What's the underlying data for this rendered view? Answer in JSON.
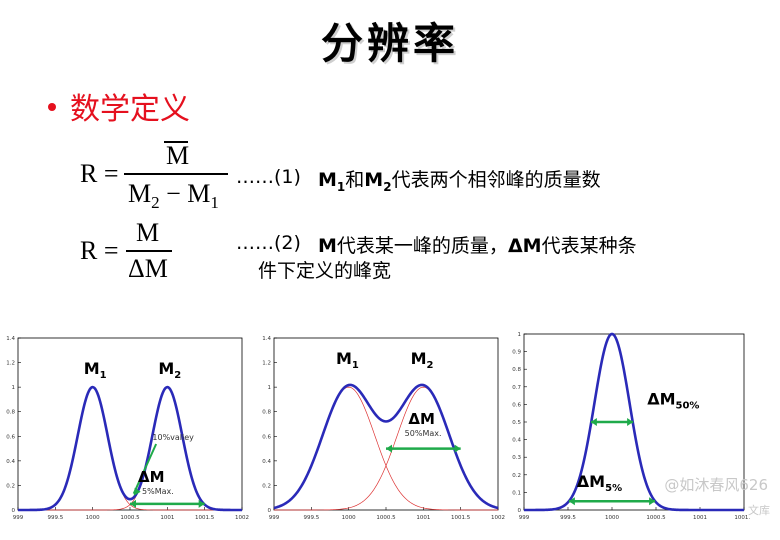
{
  "title": "分辨率",
  "bullet": "数学定义",
  "formula1": {
    "lhs": "R =",
    "numerator": "M",
    "den_a": "M",
    "den_a_sub": "2",
    "den_op": "−",
    "den_b": "M",
    "den_b_sub": "1",
    "ref": "……(1)",
    "desc_m1": "M",
    "desc_m1_sub": "1",
    "desc_and": "和",
    "desc_m2": "M",
    "desc_m2_sub": "2",
    "desc_rest": "代表两个相邻峰的质量数"
  },
  "formula2": {
    "lhs": "R =",
    "numerator": "M",
    "denominator": "ΔM",
    "ref": "……(2)",
    "desc_m": "M",
    "desc_a": "代表某一峰的质量，",
    "desc_dm": "ΔM",
    "desc_b": "代表某种条",
    "desc_c": "件下定义的峰宽"
  },
  "watermark": {
    "line1": "@如沐春风626",
    "line2": "文库"
  },
  "chart_data": [
    {
      "type": "line",
      "xlim": [
        999,
        1002
      ],
      "ylim": [
        0,
        1.4
      ],
      "xticks": [
        "999",
        "999.5",
        "1000",
        "1000.5",
        "1001",
        "1001.5",
        "1002"
      ],
      "yticks": [
        "0",
        "0.2",
        "0.4",
        "0.6",
        "0.8",
        "1",
        "1.2",
        "1.4"
      ],
      "peaks": [
        {
          "center": 1000,
          "sigma": 0.2
        },
        {
          "center": 1001,
          "sigma": 0.2
        }
      ],
      "labels": {
        "peak1": "M",
        "peak1_sub": "1",
        "peak2": "M",
        "peak2_sub": "2",
        "delta": "ΔM",
        "valley": "10%valley",
        "width": "5%Max."
      },
      "arrow": {
        "x1": 1000.5,
        "x2": 1001.5,
        "y": 0.05
      },
      "valley_y": 0.1
    },
    {
      "type": "line",
      "xlim": [
        999,
        1002
      ],
      "ylim": [
        0,
        1.4
      ],
      "xticks": [
        "999",
        "999.5",
        "1000",
        "1000.5",
        "1001",
        "1001.5",
        "1002"
      ],
      "yticks": [
        "0",
        "0.2",
        "0.4",
        "0.6",
        "0.8",
        "1",
        "1.2",
        "1.4"
      ],
      "peaks": [
        {
          "center": 1000,
          "sigma": 0.35
        },
        {
          "center": 1001,
          "sigma": 0.35
        }
      ],
      "labels": {
        "peak1": "M",
        "peak1_sub": "1",
        "peak2": "M",
        "peak2_sub": "2",
        "delta": "ΔM",
        "width": "50%Max."
      },
      "arrow": {
        "x1": 1000.5,
        "x2": 1001.5,
        "y": 0.5
      }
    },
    {
      "type": "line",
      "xlim": [
        999,
        1001.5
      ],
      "ylim": [
        0,
        1
      ],
      "xticks": [
        "999",
        "999.5",
        "1000",
        "1000.5",
        "1001",
        "1001.5"
      ],
      "yticks": [
        "0",
        "0.1",
        "0.2",
        "0.3",
        "0.4",
        "0.5",
        "0.6",
        "0.7",
        "0.8",
        "0.9",
        "1"
      ],
      "peaks": [
        {
          "center": 1000,
          "sigma": 0.2
        }
      ],
      "labels": {
        "delta50": "ΔM",
        "delta50_sub": "50%",
        "delta5": "ΔM",
        "delta5_sub": "5%"
      },
      "arrows": [
        {
          "x1": 999.76,
          "x2": 1000.24,
          "y": 0.5
        },
        {
          "x1": 999.51,
          "x2": 1000.49,
          "y": 0.05
        }
      ]
    }
  ]
}
